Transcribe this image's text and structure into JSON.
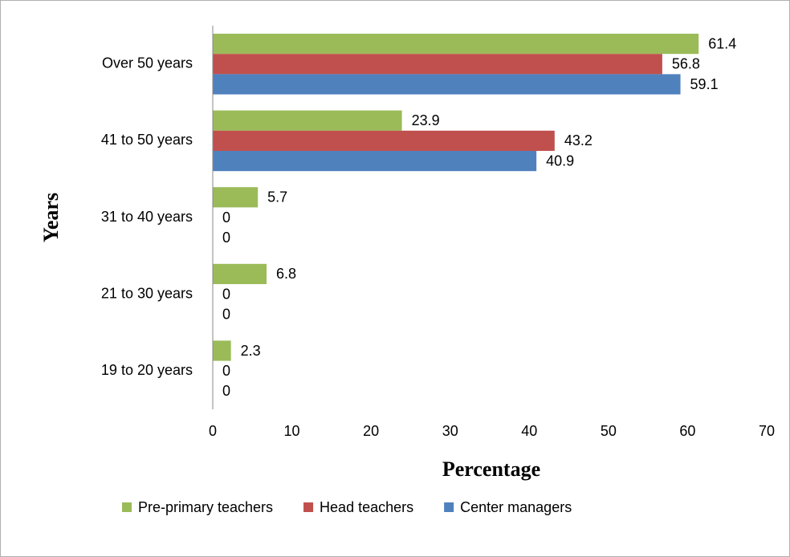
{
  "chart_data": {
    "type": "hbar",
    "x_label": "Percentage",
    "y_label": "Years",
    "categories": [
      "Over 50 years",
      "41 to 50 years",
      "31 to 40 years",
      "21 to 30 years",
      "19 to 20 years"
    ],
    "series": [
      {
        "name": "Pre-primary teachers",
        "color": "#9bbb59",
        "values": [
          61.4,
          23.9,
          5.7,
          6.8,
          2.3
        ]
      },
      {
        "name": "Head teachers",
        "color": "#c0504d",
        "values": [
          56.8,
          43.2,
          0,
          0,
          0
        ]
      },
      {
        "name": "Center managers",
        "color": "#4f81bd",
        "values": [
          59.1,
          40.9,
          0,
          0,
          0
        ]
      }
    ],
    "xlim": [
      0,
      70
    ],
    "xticks": [
      0,
      10,
      20,
      30,
      40,
      50,
      60,
      70
    ],
    "legend": "bottom"
  }
}
